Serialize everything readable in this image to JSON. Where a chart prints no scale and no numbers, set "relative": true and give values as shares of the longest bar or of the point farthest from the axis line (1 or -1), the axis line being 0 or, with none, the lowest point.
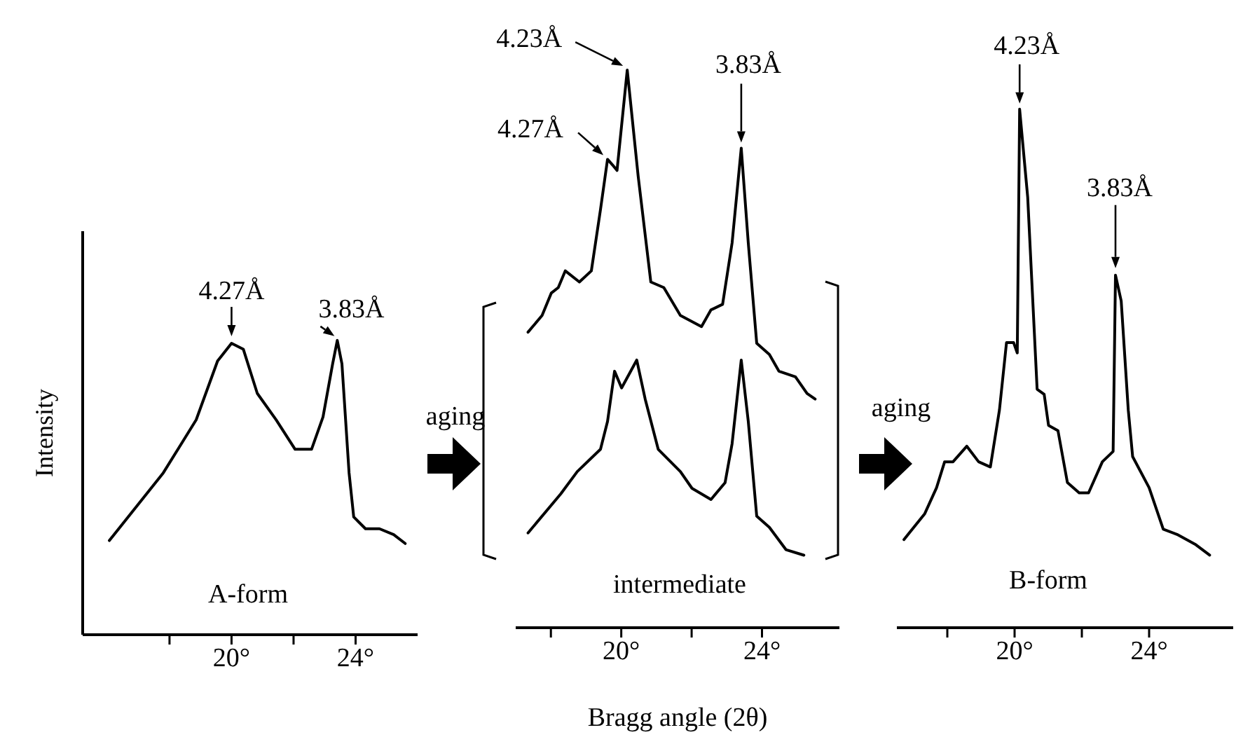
{
  "chart_data": [
    {
      "type": "line",
      "relative": true,
      "title": "A-form",
      "ylabel": "Intensity",
      "xlim": [
        15.2,
        26.0
      ],
      "xticks": [
        {
          "value": 18,
          "label": null
        },
        {
          "value": 20,
          "label": "20°"
        },
        {
          "value": 22,
          "label": null
        },
        {
          "value": 24,
          "label": "24°"
        }
      ],
      "annotations": [
        {
          "text": "4.27Å",
          "x": 20.0,
          "y": 0.99
        },
        {
          "text": "3.83Å",
          "x": 23.41,
          "y": 1.0
        }
      ],
      "series": [
        {
          "color": "#000000",
          "x": [
            16.06,
            17.8,
            18.86,
            19.55,
            20.0,
            20.38,
            20.83,
            21.44,
            22.05,
            22.58,
            22.95,
            23.26,
            23.41,
            23.56,
            23.79,
            23.94,
            24.32,
            24.77,
            25.23,
            25.6
          ],
          "values": [
            0.32,
            0.55,
            0.73,
            0.93,
            0.99,
            0.97,
            0.82,
            0.73,
            0.63,
            0.63,
            0.74,
            0.92,
            1.0,
            0.92,
            0.55,
            0.4,
            0.36,
            0.36,
            0.34,
            0.31
          ]
        }
      ]
    },
    {
      "type": "line",
      "relative": true,
      "title": "intermediate",
      "xlabel": "Bragg angle (2θ)",
      "xlim": [
        17.0,
        26.2
      ],
      "xticks": [
        {
          "value": 18,
          "label": null
        },
        {
          "value": 20,
          "label": "20°"
        },
        {
          "value": 22,
          "label": null
        },
        {
          "value": 24,
          "label": "24°"
        }
      ],
      "annotations": [
        "aging",
        {
          "text": "4.23Å",
          "x": 20.17,
          "y": 1.0
        },
        {
          "text": "4.27Å",
          "x": 19.61,
          "y": 0.84
        },
        {
          "text": "3.83Å",
          "x": 23.41,
          "y": 0.86
        }
      ],
      "series": [
        {
          "color": "#000000",
          "x": [
            17.35,
            17.75,
            18.01,
            18.21,
            18.41,
            18.81,
            19.15,
            19.41,
            19.61,
            19.75,
            19.88,
            20.17,
            20.48,
            20.84,
            21.21,
            21.68,
            22.28,
            22.55,
            22.88,
            23.15,
            23.41,
            23.61,
            23.85,
            24.21,
            24.48,
            24.95,
            25.28,
            25.51
          ],
          "values": [
            0.53,
            0.56,
            0.6,
            0.61,
            0.64,
            0.62,
            0.64,
            0.75,
            0.84,
            0.83,
            0.82,
            1.0,
            0.81,
            0.62,
            0.61,
            0.56,
            0.54,
            0.57,
            0.58,
            0.69,
            0.86,
            0.69,
            0.51,
            0.49,
            0.46,
            0.45,
            0.42,
            0.41
          ]
        },
        {
          "color": "#000000",
          "x": [
            17.35,
            18.28,
            18.75,
            19.41,
            19.61,
            19.81,
            20.01,
            20.44,
            20.68,
            21.05,
            21.68,
            22.01,
            22.55,
            22.95,
            23.15,
            23.41,
            23.61,
            23.85,
            24.21,
            24.68,
            25.19
          ],
          "values": [
            0.17,
            0.24,
            0.28,
            0.32,
            0.37,
            0.46,
            0.43,
            0.48,
            0.41,
            0.32,
            0.28,
            0.25,
            0.23,
            0.26,
            0.33,
            0.48,
            0.37,
            0.2,
            0.18,
            0.14,
            0.13
          ]
        }
      ]
    },
    {
      "type": "line",
      "relative": true,
      "title": "B-form",
      "xlim": [
        16.5,
        26.5
      ],
      "xticks": [
        {
          "value": 18,
          "label": null
        },
        {
          "value": 20,
          "label": "20°"
        },
        {
          "value": 22,
          "label": null
        },
        {
          "value": 24,
          "label": "24°"
        }
      ],
      "annotations": [
        "aging",
        {
          "text": "4.23Å",
          "x": 20.15,
          "y": 1.0
        },
        {
          "text": "3.83Å",
          "x": 23.0,
          "y": 0.68
        }
      ],
      "series": [
        {
          "color": "#000000",
          "x": [
            16.71,
            17.33,
            17.68,
            17.92,
            18.17,
            18.58,
            18.93,
            19.28,
            19.55,
            19.76,
            19.97,
            20.08,
            20.15,
            20.39,
            20.67,
            20.88,
            21.01,
            21.29,
            21.57,
            21.92,
            22.2,
            22.61,
            22.93,
            23.0,
            23.17,
            23.38,
            23.51,
            24.0,
            24.42,
            24.83,
            25.39,
            25.8
          ],
          "values": [
            0.17,
            0.22,
            0.27,
            0.32,
            0.32,
            0.35,
            0.32,
            0.31,
            0.42,
            0.55,
            0.55,
            0.53,
            1.0,
            0.83,
            0.46,
            0.45,
            0.39,
            0.38,
            0.28,
            0.26,
            0.26,
            0.32,
            0.34,
            0.68,
            0.63,
            0.42,
            0.33,
            0.27,
            0.19,
            0.18,
            0.16,
            0.14
          ]
        }
      ]
    }
  ]
}
